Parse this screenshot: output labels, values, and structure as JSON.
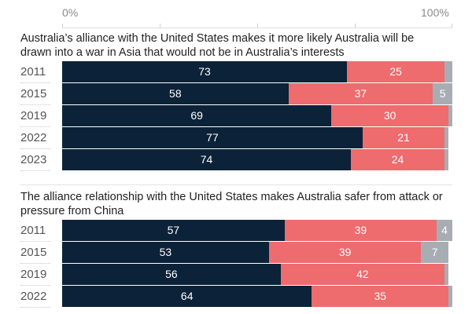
{
  "axis": {
    "min_label": "0%",
    "max_label": "100%"
  },
  "colors": {
    "first": "#0c2238",
    "second": "#ee6b6e",
    "third": "#a8adb3"
  },
  "chart_data": [
    {
      "type": "bar",
      "orientation": "horizontal",
      "stacked": true,
      "title": "Australia’s alliance with the United States makes it more likely Australia will be drawn into a war in Asia that would not be in Australia’s interests",
      "xlim": [
        0,
        100
      ],
      "categories": [
        "2011",
        "2015",
        "2019",
        "2022",
        "2023"
      ],
      "series": [
        {
          "values": [
            73,
            58,
            69,
            77,
            74
          ]
        },
        {
          "values": [
            25,
            37,
            30,
            21,
            24
          ]
        },
        {
          "values": [
            2,
            5,
            1,
            1,
            1
          ]
        }
      ]
    },
    {
      "type": "bar",
      "orientation": "horizontal",
      "stacked": true,
      "title": "The alliance relationship with the United States makes Australia safer from attack or pressure from China",
      "xlim": [
        0,
        100
      ],
      "categories": [
        "2011",
        "2015",
        "2019",
        "2022"
      ],
      "series": [
        {
          "values": [
            57,
            53,
            56,
            64
          ]
        },
        {
          "values": [
            39,
            39,
            42,
            35
          ]
        },
        {
          "values": [
            4,
            7,
            1,
            1
          ]
        }
      ]
    }
  ]
}
